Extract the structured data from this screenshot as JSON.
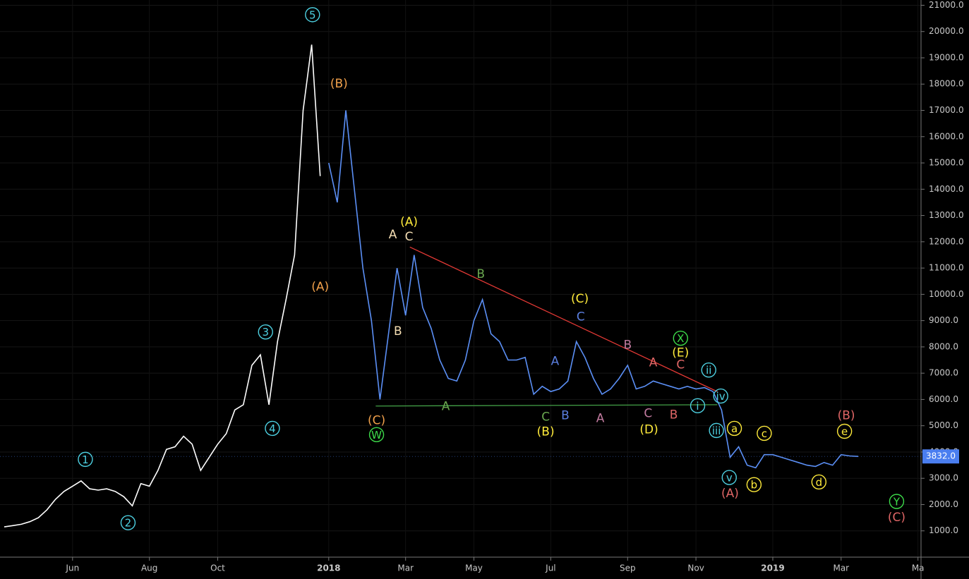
{
  "chart_data": {
    "type": "line",
    "categories": [
      null,
      null,
      null,
      null,
      null,
      null,
      null,
      null,
      "Jun",
      null,
      null,
      null,
      null,
      null,
      null,
      null,
      null,
      "Aug",
      null,
      null,
      null,
      null,
      null,
      null,
      null,
      "Oct",
      null,
      null,
      null,
      null,
      null,
      null,
      null,
      null,
      null,
      null,
      null,
      null,
      "2018",
      null,
      null,
      null,
      null,
      null,
      null,
      null,
      null,
      "Mar",
      null,
      null,
      null,
      null,
      null,
      null,
      null,
      "May",
      null,
      null,
      null,
      null,
      null,
      null,
      null,
      null,
      "Jul",
      null,
      null,
      null,
      null,
      null,
      null,
      null,
      null,
      "Sep",
      null,
      null,
      null,
      null,
      null,
      null,
      null,
      "Nov",
      null,
      null,
      null,
      null,
      null,
      null,
      null,
      null,
      "2019",
      null,
      null,
      null,
      null,
      null,
      null,
      null,
      "Mar",
      null,
      null,
      null,
      null,
      null,
      null,
      null,
      null,
      "Ma"
    ],
    "series": [
      {
        "color": "#ffffff",
        "values": [
          1150,
          1200,
          1250,
          1350,
          1500,
          1800,
          2200,
          2500,
          2700,
          2900,
          2600,
          2550,
          2600,
          2500,
          2300,
          1950,
          2800,
          2700,
          3300,
          4100,
          4200,
          4600,
          4300,
          3300,
          3800,
          4300,
          4700,
          5600,
          5800,
          7300,
          7700,
          5800,
          8200,
          9800,
          11500,
          17000,
          19500,
          14500,
          null,
          null,
          null,
          null,
          null,
          null,
          null,
          null,
          null,
          null,
          null,
          null,
          null,
          null,
          null,
          null,
          null,
          null,
          null,
          null,
          null,
          null,
          null,
          null,
          null,
          null,
          null,
          null,
          null,
          null,
          null,
          null,
          null,
          null,
          null,
          null,
          null,
          null,
          null,
          null,
          null,
          null,
          null,
          null,
          null,
          null,
          null,
          null,
          null,
          null,
          null,
          null,
          null,
          null,
          null,
          null,
          null,
          null,
          null,
          null,
          null,
          null,
          null,
          null,
          null,
          null,
          null,
          null,
          null,
          null
        ]
      },
      {
        "color": "#5b8ff5",
        "values": [
          null,
          null,
          null,
          null,
          null,
          null,
          null,
          null,
          null,
          null,
          null,
          null,
          null,
          null,
          null,
          null,
          null,
          null,
          null,
          null,
          null,
          null,
          null,
          null,
          null,
          null,
          null,
          null,
          null,
          null,
          null,
          null,
          null,
          null,
          null,
          null,
          null,
          null,
          15000,
          13500,
          17000,
          14000,
          11000,
          9000,
          6000,
          8500,
          11000,
          9200,
          11500,
          9500,
          8700,
          7500,
          6800,
          6700,
          7500,
          9000,
          9800,
          8500,
          8200,
          7500,
          7500,
          7600,
          6200,
          6500,
          6300,
          6400,
          6700,
          8200,
          7600,
          6800,
          6200,
          6400,
          6800,
          7300,
          6400,
          6500,
          6700,
          6600,
          6500,
          6400,
          6500,
          6400,
          6450,
          6300,
          5600,
          3800,
          4200,
          3500,
          3400,
          3900,
          3900,
          3800,
          3700,
          3600,
          3500,
          3450,
          3600,
          3500,
          3900,
          3850,
          3832,
          null,
          null,
          null,
          null,
          null,
          null,
          null
        ]
      }
    ],
    "ylim": [
      0,
      21200
    ],
    "yticks": [
      {
        "value": 1000,
        "label": "1000.0"
      },
      {
        "value": 2000,
        "label": "2000.0"
      },
      {
        "value": 3000,
        "label": "3000.0"
      },
      {
        "value": 4000,
        "label": "4000.0"
      },
      {
        "value": 5000,
        "label": "5000.0"
      },
      {
        "value": 6000,
        "label": "6000.0"
      },
      {
        "value": 7000,
        "label": "7000.0"
      },
      {
        "value": 8000,
        "label": "8000.0"
      },
      {
        "value": 9000,
        "label": "9000.0"
      },
      {
        "value": 10000,
        "label": "10000.0"
      },
      {
        "value": 11000,
        "label": "11000.0"
      },
      {
        "value": 12000,
        "label": "12000.0"
      },
      {
        "value": 13000,
        "label": "13000.0"
      },
      {
        "value": 14000,
        "label": "14000.0"
      },
      {
        "value": 15000,
        "label": "15000.0"
      },
      {
        "value": 16000,
        "label": "16000.0"
      },
      {
        "value": 17000,
        "label": "17000.0"
      },
      {
        "value": 18000,
        "label": "18000.0"
      },
      {
        "value": 19000,
        "label": "19000.0"
      },
      {
        "value": 20000,
        "label": "20000.0"
      },
      {
        "value": 21000,
        "label": "21000.0"
      }
    ],
    "grid": true,
    "last_price": {
      "value": 3832,
      "label": "3832.0",
      "color": "#4a7ef0"
    },
    "trendlines": [
      {
        "color": "#e53935",
        "x": [
          47.5,
          83.5
        ],
        "y": [
          11800,
          6300
        ]
      },
      {
        "color": "#43a047",
        "x": [
          43.5,
          83.5
        ],
        "y": [
          5750,
          5800
        ]
      }
    ],
    "annotations": [
      {
        "text": "1",
        "x": 9.5,
        "y": 3720,
        "color": "#4dd0e1",
        "circle": true
      },
      {
        "text": "2",
        "x": 14.5,
        "y": 1310,
        "color": "#4dd0e1",
        "circle": true
      },
      {
        "text": "3",
        "x": 30.6,
        "y": 8570,
        "color": "#4dd0e1",
        "circle": true
      },
      {
        "text": "4",
        "x": 31.4,
        "y": 4900,
        "color": "#4dd0e1",
        "circle": true
      },
      {
        "text": "5",
        "x": 36.1,
        "y": 20640,
        "color": "#4dd0e1",
        "circle": true
      },
      {
        "text": "(A)",
        "x": 37,
        "y": 10310,
        "color": "#f0a04b",
        "circle": false
      },
      {
        "text": "(B)",
        "x": 39.2,
        "y": 18040,
        "color": "#f0a04b",
        "circle": false
      },
      {
        "text": "(C)",
        "x": 43.6,
        "y": 5220,
        "color": "#f0a04b",
        "circle": false
      },
      {
        "text": "W",
        "x": 43.6,
        "y": 4660,
        "color": "#3ddc4a",
        "circle": true
      },
      {
        "text": "A",
        "x": 45.5,
        "y": 12290,
        "color": "#f5deb3",
        "circle": false
      },
      {
        "text": "(A)",
        "x": 47.4,
        "y": 12770,
        "color": "#ffeb3b",
        "circle": false
      },
      {
        "text": "C",
        "x": 47.4,
        "y": 12210,
        "color": "#f5deb3",
        "circle": false
      },
      {
        "text": "B",
        "x": 46.1,
        "y": 8620,
        "color": "#f5deb3",
        "circle": false
      },
      {
        "text": "B",
        "x": 55.8,
        "y": 10790,
        "color": "#6aa84f",
        "circle": false
      },
      {
        "text": "A",
        "x": 51.7,
        "y": 5760,
        "color": "#6aa84f",
        "circle": false
      },
      {
        "text": "C",
        "x": 63.4,
        "y": 5350,
        "color": "#6aa84f",
        "circle": false
      },
      {
        "text": "(B)",
        "x": 63.4,
        "y": 4790,
        "color": "#ffeb3b",
        "circle": false
      },
      {
        "text": "A",
        "x": 64.5,
        "y": 7470,
        "color": "#5b7fe0",
        "circle": false
      },
      {
        "text": "B",
        "x": 65.7,
        "y": 5410,
        "color": "#5b7fe0",
        "circle": false
      },
      {
        "text": "(C)",
        "x": 67.4,
        "y": 9850,
        "color": "#ffeb3b",
        "circle": false
      },
      {
        "text": "C",
        "x": 67.5,
        "y": 9160,
        "color": "#5b7fe0",
        "circle": false
      },
      {
        "text": "A",
        "x": 69.8,
        "y": 5300,
        "color": "#c27ba0",
        "circle": false
      },
      {
        "text": "B",
        "x": 73,
        "y": 8090,
        "color": "#c27ba0",
        "circle": false
      },
      {
        "text": "C",
        "x": 75.4,
        "y": 5490,
        "color": "#c27ba0",
        "circle": false
      },
      {
        "text": "(D)",
        "x": 75.5,
        "y": 4870,
        "color": "#ffeb3b",
        "circle": false
      },
      {
        "text": "A",
        "x": 76,
        "y": 7420,
        "color": "#e06666",
        "circle": false
      },
      {
        "text": "B",
        "x": 78.4,
        "y": 5430,
        "color": "#e06666",
        "circle": false
      },
      {
        "text": "C",
        "x": 79.2,
        "y": 7340,
        "color": "#e06666",
        "circle": false
      },
      {
        "text": "(E)",
        "x": 79.2,
        "y": 7790,
        "color": "#ffeb3b",
        "circle": false
      },
      {
        "text": "X",
        "x": 79.2,
        "y": 8330,
        "color": "#3ddc4a",
        "circle": true
      },
      {
        "text": "ii",
        "x": 82.5,
        "y": 7120,
        "color": "#4dd0e1",
        "circle": true
      },
      {
        "text": "i",
        "x": 81.2,
        "y": 5760,
        "color": "#4dd0e1",
        "circle": true
      },
      {
        "text": "iv",
        "x": 83.9,
        "y": 6130,
        "color": "#4dd0e1",
        "circle": true
      },
      {
        "text": "iii",
        "x": 83.4,
        "y": 4820,
        "color": "#4dd0e1",
        "circle": true
      },
      {
        "text": "v",
        "x": 84.9,
        "y": 3030,
        "color": "#4dd0e1",
        "circle": true
      },
      {
        "text": "(A)",
        "x": 85,
        "y": 2440,
        "color": "#e06666",
        "circle": false
      },
      {
        "text": "a",
        "x": 85.5,
        "y": 4900,
        "color": "#ffeb3b",
        "circle": true
      },
      {
        "text": "b",
        "x": 87.8,
        "y": 2760,
        "color": "#ffeb3b",
        "circle": true
      },
      {
        "text": "c",
        "x": 89,
        "y": 4710,
        "color": "#ffeb3b",
        "circle": true
      },
      {
        "text": "d",
        "x": 95.4,
        "y": 2860,
        "color": "#ffeb3b",
        "circle": true
      },
      {
        "text": "e",
        "x": 98.4,
        "y": 4790,
        "color": "#ffeb3b",
        "circle": true
      },
      {
        "text": "(B)",
        "x": 98.6,
        "y": 5410,
        "color": "#e06666",
        "circle": false
      },
      {
        "text": "Y",
        "x": 104.5,
        "y": 2120,
        "color": "#3ddc4a",
        "circle": true
      },
      {
        "text": "(C)",
        "x": 104.5,
        "y": 1530,
        "color": "#e06666",
        "circle": false
      }
    ]
  }
}
